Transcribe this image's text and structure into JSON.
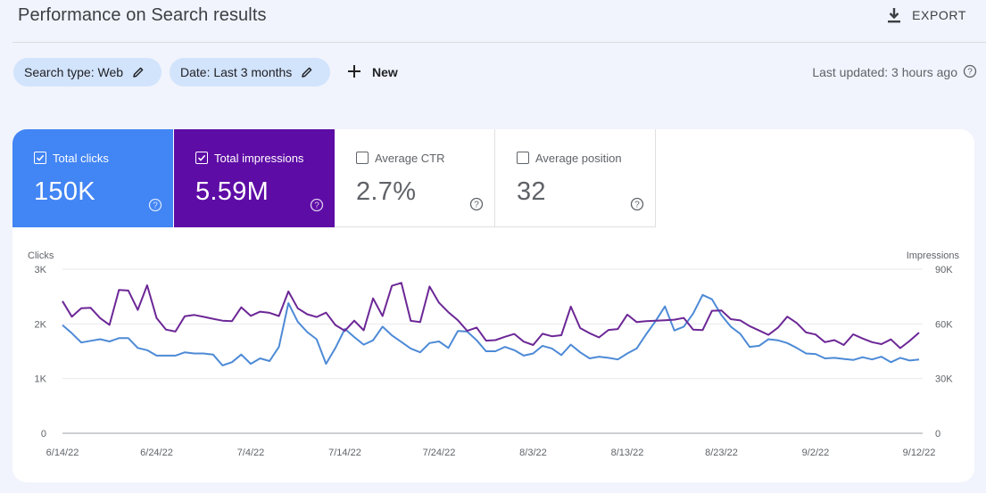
{
  "header": {
    "title": "Performance on Search results",
    "export_label": "EXPORT"
  },
  "filters": {
    "search_type": "Search type: Web",
    "date": "Date: Last 3 months",
    "new_label": "New",
    "last_updated": "Last updated: 3 hours ago"
  },
  "metrics": [
    {
      "label": "Total clicks",
      "value": "150K",
      "checked": true,
      "color": "#4285f4"
    },
    {
      "label": "Total impressions",
      "value": "5.59M",
      "checked": true,
      "color": "#5e0ca6"
    },
    {
      "label": "Average CTR",
      "value": "2.7%",
      "checked": false,
      "color": "#ffffff"
    },
    {
      "label": "Average position",
      "value": "32",
      "checked": false,
      "color": "#ffffff"
    }
  ],
  "chart_data": {
    "type": "line",
    "ylabel_left": "Clicks",
    "ylabel_right": "Impressions",
    "left_ticks": [
      "3K",
      "2K",
      "1K",
      "0"
    ],
    "right_ticks": [
      "90K",
      "60K",
      "30K",
      "0"
    ],
    "ylim_left": [
      0,
      3000
    ],
    "ylim_right": [
      0,
      90000
    ],
    "x_ticks": [
      "6/14/22",
      "6/24/22",
      "7/4/22",
      "7/14/22",
      "7/24/22",
      "8/3/22",
      "8/13/22",
      "8/23/22",
      "9/2/22",
      "9/12/22"
    ],
    "grid": true,
    "series": [
      {
        "name": "Clicks",
        "axis": "left",
        "color": "#4d8ad6",
        "values": [
          1980,
          1830,
          1660,
          1690,
          1720,
          1680,
          1740,
          1740,
          1560,
          1520,
          1420,
          1420,
          1420,
          1480,
          1460,
          1460,
          1440,
          1240,
          1300,
          1440,
          1270,
          1370,
          1320,
          1580,
          2380,
          2040,
          1850,
          1720,
          1270,
          1560,
          1910,
          1760,
          1620,
          1700,
          1950,
          1790,
          1670,
          1550,
          1480,
          1650,
          1680,
          1560,
          1870,
          1860,
          1700,
          1500,
          1500,
          1580,
          1520,
          1420,
          1460,
          1600,
          1550,
          1430,
          1620,
          1480,
          1370,
          1400,
          1380,
          1350,
          1460,
          1550,
          1810,
          2050,
          2320,
          1880,
          1950,
          2190,
          2530,
          2450,
          2160,
          1950,
          1820,
          1580,
          1600,
          1720,
          1700,
          1650,
          1560,
          1460,
          1450,
          1370,
          1380,
          1360,
          1340,
          1390,
          1350,
          1400,
          1300,
          1380,
          1330,
          1350
        ],
        "_xnote": "daily points 6/14/22 to 9/12/22"
      },
      {
        "name": "Impressions",
        "axis": "right",
        "color": "#6c2796",
        "values": [
          72500,
          64000,
          68600,
          68800,
          63200,
          59500,
          78600,
          78300,
          67700,
          81200,
          63200,
          56900,
          55800,
          64200,
          64900,
          63900,
          62800,
          61800,
          61500,
          69100,
          64400,
          66700,
          66100,
          64300,
          77800,
          68600,
          65300,
          63800,
          66200,
          59400,
          56200,
          61800,
          56500,
          74000,
          64300,
          80900,
          82500,
          61700,
          61000,
          80500,
          71600,
          66400,
          62000,
          56200,
          58000,
          50800,
          51100,
          52900,
          54500,
          50300,
          48400,
          54600,
          53200,
          53800,
          69500,
          57700,
          54900,
          52600,
          56700,
          57200,
          65100,
          61000,
          61500,
          61800,
          62000,
          62300,
          63300,
          56900,
          56600,
          67200,
          67400,
          62600,
          61900,
          58800,
          56400,
          54000,
          57900,
          64000,
          60500,
          55300,
          54200,
          50000,
          51100,
          48400,
          54300,
          52000,
          50000,
          48900,
          51500,
          46700,
          50700,
          55200
        ]
      }
    ]
  }
}
